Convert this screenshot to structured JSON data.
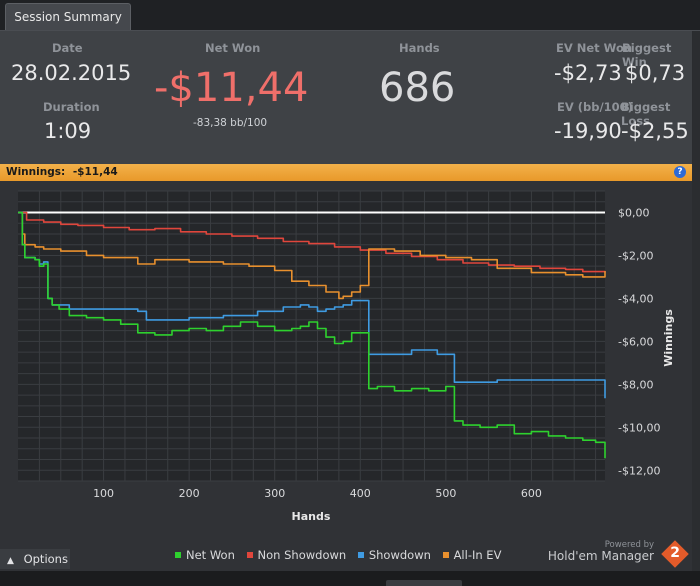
{
  "tab": {
    "label": "Session Summary"
  },
  "summary": {
    "date_label": "Date",
    "date_value": "28.02.2015",
    "duration_label": "Duration",
    "duration_value": "1:09",
    "net_won_label": "Net Won",
    "net_won_value": "-$11,44",
    "net_won_sub": "-83,38 bb/100",
    "hands_label": "Hands",
    "hands_value": "686",
    "ev_net_won_label": "EV Net Won",
    "ev_net_won_value": "-$2,73",
    "biggest_win_label": "Biggest Win",
    "biggest_win_value": "$0,73",
    "ev_bb100_label": "EV (bb/100)",
    "ev_bb100_value": "-19,90",
    "biggest_loss_label": "Biggest Loss",
    "biggest_loss_value": "-$2,55"
  },
  "winnings_bar": {
    "label": "Winnings:",
    "value": "-$11,44",
    "help_icon": "?"
  },
  "colors": {
    "net_won": "#2ed12e",
    "non_showdown": "#e0463c",
    "showdown": "#3f9be2",
    "allin_ev": "#e8902e",
    "negative": "#ef6f6a",
    "accent": "#f0a63a"
  },
  "chart_data": {
    "type": "line",
    "xlabel": "Hands",
    "ylabel": "Winnings",
    "xlim": [
      0,
      686
    ],
    "ylim": [
      -12.5,
      1.0
    ],
    "x_ticks": [
      100,
      200,
      300,
      400,
      500,
      600
    ],
    "x_tick_labels": [
      "100",
      "200",
      "300",
      "400",
      "500",
      "600"
    ],
    "y_ticks": [
      0,
      -2,
      -4,
      -6,
      -8,
      -10,
      -12
    ],
    "y_tick_labels": [
      "$0,00",
      "-$2,00",
      "-$4,00",
      "-$6,00",
      "-$8,00",
      "-$10,00",
      "-$12,00"
    ],
    "zero_line": 0,
    "grid": true,
    "legend_position": "bottom",
    "series": [
      {
        "name": "Net Won",
        "color": "#2ed12e",
        "x": [
          0,
          5,
          8,
          20,
          25,
          30,
          35,
          40,
          48,
          60,
          80,
          100,
          120,
          140,
          160,
          180,
          200,
          220,
          240,
          260,
          280,
          300,
          320,
          330,
          340,
          350,
          360,
          370,
          380,
          390,
          400,
          410,
          420,
          440,
          460,
          480,
          500,
          510,
          520,
          540,
          560,
          580,
          600,
          620,
          640,
          660,
          675,
          686
        ],
        "y": [
          0,
          -1.5,
          -2.1,
          -2.2,
          -2.5,
          -2.4,
          -4.0,
          -4.3,
          -4.5,
          -4.8,
          -4.9,
          -5.0,
          -5.2,
          -5.6,
          -5.7,
          -5.5,
          -5.4,
          -5.5,
          -5.3,
          -5.1,
          -5.3,
          -5.5,
          -5.4,
          -5.3,
          -5.1,
          -5.4,
          -5.8,
          -6.1,
          -6.0,
          -5.6,
          -5.6,
          -8.2,
          -8.1,
          -8.3,
          -8.2,
          -8.3,
          -8.1,
          -9.7,
          -9.9,
          -10.0,
          -9.9,
          -10.3,
          -10.2,
          -10.4,
          -10.5,
          -10.6,
          -10.7,
          -11.44
        ]
      },
      {
        "name": "Non Showdown",
        "color": "#e0463c",
        "x": [
          0,
          10,
          30,
          50,
          70,
          100,
          130,
          160,
          190,
          220,
          250,
          280,
          310,
          340,
          370,
          400,
          430,
          460,
          490,
          520,
          550,
          580,
          610,
          640,
          660,
          686
        ],
        "y": [
          0,
          -0.35,
          -0.45,
          -0.55,
          -0.6,
          -0.7,
          -0.8,
          -0.75,
          -0.9,
          -1.0,
          -1.1,
          -1.2,
          -1.35,
          -1.45,
          -1.6,
          -1.75,
          -1.9,
          -2.05,
          -2.2,
          -2.35,
          -2.45,
          -2.5,
          -2.6,
          -2.65,
          -2.75,
          -2.8
        ]
      },
      {
        "name": "Showdown",
        "color": "#3f9be2",
        "x": [
          0,
          5,
          8,
          20,
          25,
          30,
          35,
          40,
          60,
          80,
          100,
          120,
          140,
          150,
          200,
          240,
          280,
          310,
          330,
          340,
          350,
          360,
          370,
          380,
          390,
          400,
          410,
          440,
          460,
          490,
          510,
          560,
          600,
          660,
          675,
          686
        ],
        "y": [
          0,
          -1.5,
          -2.1,
          -2.2,
          -2.4,
          -2.3,
          -4.0,
          -4.3,
          -4.5,
          -4.5,
          -4.5,
          -4.5,
          -4.6,
          -5.0,
          -4.9,
          -4.8,
          -4.6,
          -4.4,
          -4.3,
          -4.4,
          -4.6,
          -4.5,
          -4.4,
          -4.3,
          -4.1,
          -4.1,
          -6.6,
          -6.6,
          -6.4,
          -6.6,
          -7.9,
          -7.8,
          -7.8,
          -7.8,
          -7.8,
          -8.65
        ]
      },
      {
        "name": "All-In EV",
        "color": "#e8902e",
        "x": [
          0,
          5,
          8,
          20,
          30,
          50,
          80,
          100,
          140,
          160,
          200,
          240,
          270,
          300,
          320,
          340,
          360,
          375,
          380,
          390,
          400,
          410,
          440,
          470,
          500,
          530,
          560,
          600,
          640,
          660,
          686
        ],
        "y": [
          0,
          -1.0,
          -1.5,
          -1.6,
          -1.7,
          -1.8,
          -2.0,
          -2.1,
          -2.4,
          -2.2,
          -2.3,
          -2.4,
          -2.5,
          -2.7,
          -3.2,
          -3.4,
          -3.7,
          -4.0,
          -3.9,
          -3.7,
          -3.4,
          -1.7,
          -1.8,
          -2.0,
          -2.1,
          -2.2,
          -2.6,
          -2.8,
          -2.9,
          -3.0,
          -2.73
        ]
      }
    ]
  },
  "legend": {
    "items": [
      "Net Won",
      "Non Showdown",
      "Showdown",
      "All-In EV"
    ]
  },
  "options": {
    "label": "Options"
  },
  "branding": {
    "powered_by": "Powered by",
    "product": "Hold'em Manager",
    "logo_number": "2"
  }
}
